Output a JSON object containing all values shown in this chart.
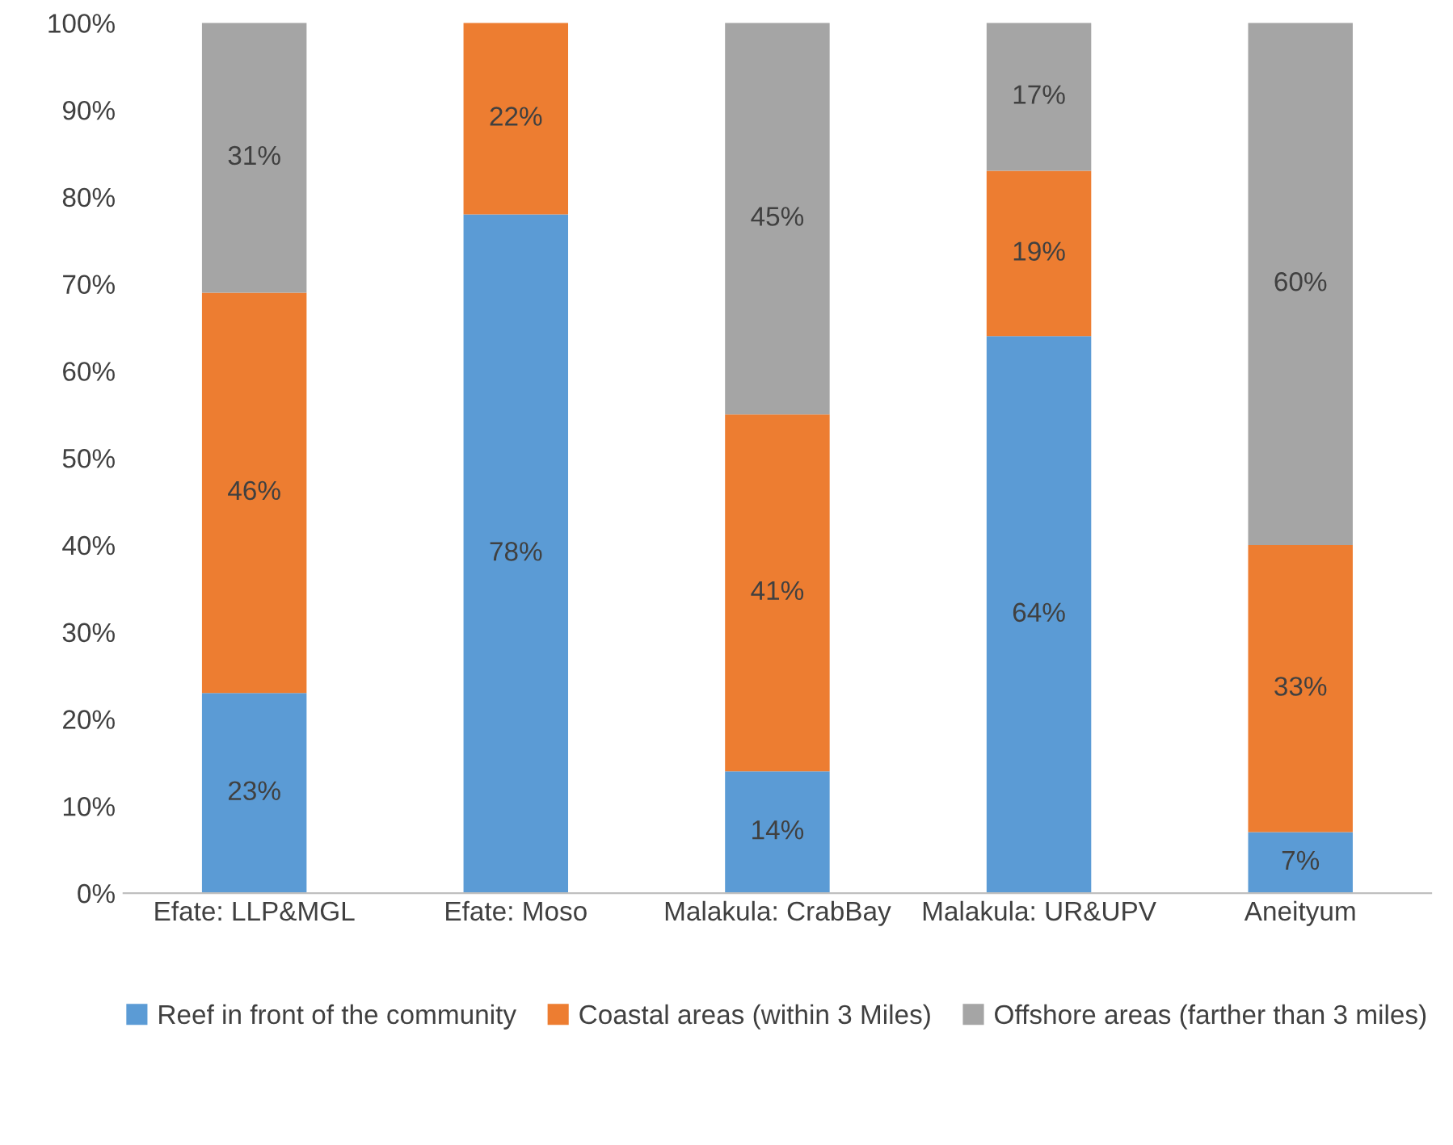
{
  "chart_data": {
    "type": "bar",
    "stacked": true,
    "categories": [
      "Efate: LLP&MGL",
      "Efate: Moso",
      "Malakula: CrabBay",
      "Malakula: UR&UPV",
      "Aneityum"
    ],
    "series": [
      {
        "name": "Reef in front of the community",
        "color": "#5b9bd5",
        "values": [
          23,
          78,
          14,
          64,
          7
        ],
        "value_labels": [
          "23%",
          "78%",
          "14%",
          "64%",
          "7%"
        ]
      },
      {
        "name": "Coastal areas (within 3 Miles)",
        "color": "#ed7d31",
        "values": [
          46,
          22,
          41,
          19,
          33
        ],
        "value_labels": [
          "46%",
          "22%",
          "41%",
          "19%",
          "33%"
        ]
      },
      {
        "name": "Offshore areas (farther than 3 miles)",
        "color": "#a5a5a5",
        "values": [
          31,
          0,
          45,
          17,
          60
        ],
        "value_labels": [
          "31%",
          null,
          "45%",
          "17%",
          "60%"
        ]
      }
    ],
    "ylim": [
      0,
      100
    ],
    "yticks": [
      {
        "value": 0,
        "label": "0%"
      },
      {
        "value": 10,
        "label": "10%"
      },
      {
        "value": 20,
        "label": "20%"
      },
      {
        "value": 30,
        "label": "30%"
      },
      {
        "value": 40,
        "label": "40%"
      },
      {
        "value": 50,
        "label": "50%"
      },
      {
        "value": 60,
        "label": "60%"
      },
      {
        "value": 70,
        "label": "70%"
      },
      {
        "value": 80,
        "label": "80%"
      },
      {
        "value": 90,
        "label": "90%"
      },
      {
        "value": 100,
        "label": "100%"
      }
    ],
    "grid": false,
    "legend": "bottom"
  }
}
